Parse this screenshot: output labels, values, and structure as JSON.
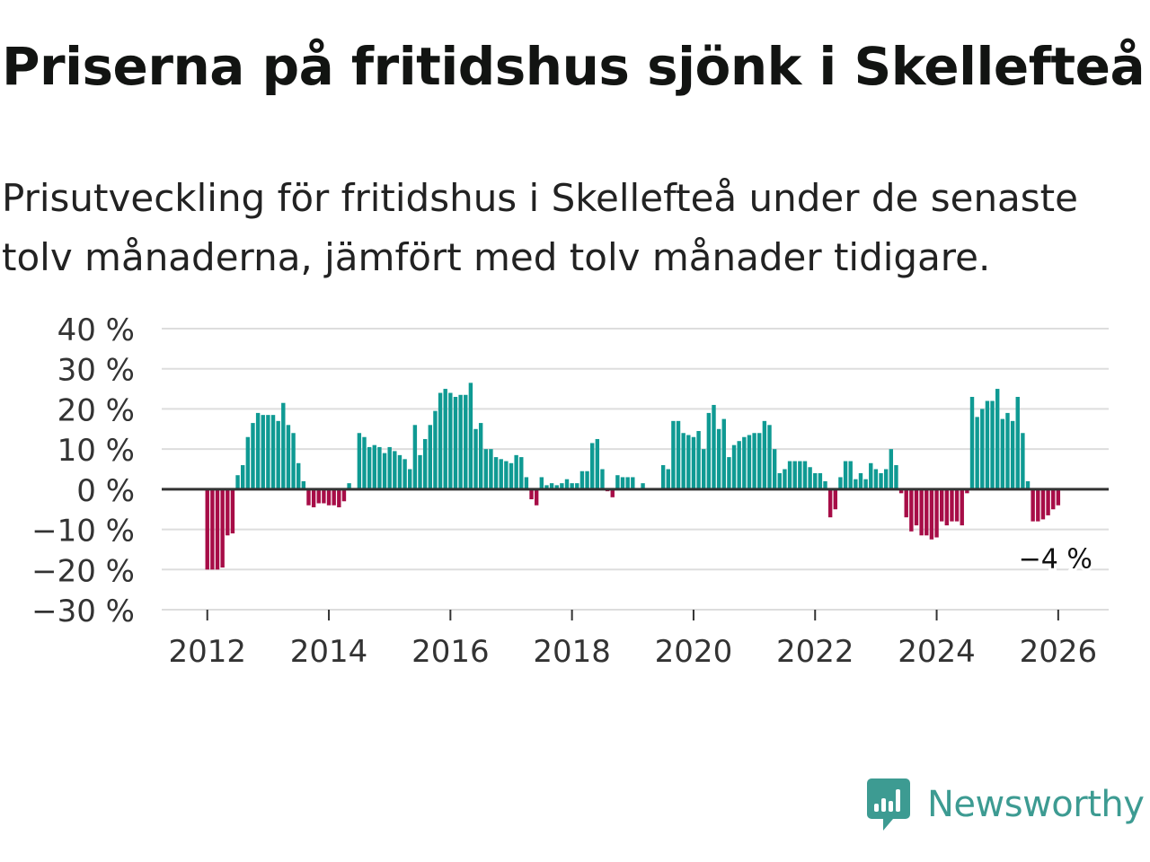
{
  "header": {
    "title": "Priserna på fritidshus sjönk i Skellefteå",
    "subtitle": "Prisutveckling för fritidshus i Skellefteå under de senaste tolv månaderna, jämfört med tolv månader tidigare."
  },
  "brand": {
    "name": "Newsworthy",
    "icon": "newsworthy-logo-icon"
  },
  "colors": {
    "positive": "#0f9a93",
    "negative": "#a70d47",
    "grid": "#dddddd",
    "zero_line": "#333333",
    "brand": "#3d9b92"
  },
  "chart_data": {
    "type": "bar",
    "title": "Priserna på fritidshus sjönk i Skellefteå",
    "xlabel": "",
    "ylabel": "",
    "unit": "%",
    "ylim": [
      -30,
      40
    ],
    "yticks": [
      40,
      30,
      20,
      10,
      0,
      -10,
      -20,
      -30
    ],
    "ytick_labels": [
      "40 %",
      "30 %",
      "20 %",
      "10 %",
      "0 %",
      "−10 %",
      "−20 %",
      "−30 %"
    ],
    "xlim": [
      2011.25,
      2026.83
    ],
    "xticks": [
      2012,
      2014,
      2016,
      2018,
      2020,
      2022,
      2024,
      2026
    ],
    "xtick_labels": [
      "2012",
      "2014",
      "2016",
      "2018",
      "2020",
      "2022",
      "2024",
      "2026"
    ],
    "start": "2012-01",
    "frequency": "monthly",
    "values": [
      -20,
      -20,
      -20,
      -19.5,
      -11.5,
      -11,
      3.5,
      6,
      13,
      16.5,
      19,
      18.5,
      18.5,
      18.5,
      17,
      21.5,
      16,
      14,
      6.5,
      2,
      -4,
      -4.5,
      -3.5,
      -3.5,
      -4,
      -4,
      -4.5,
      -3,
      1.5,
      0,
      14,
      13,
      10.5,
      11,
      10.5,
      9,
      10.5,
      9.5,
      8.5,
      7.5,
      5,
      16,
      8.5,
      12.5,
      16,
      19.5,
      24,
      25,
      24,
      23,
      23.5,
      23.5,
      26.5,
      15,
      16.5,
      10,
      10,
      8,
      7.5,
      7,
      6.5,
      8.5,
      8,
      3,
      -2.5,
      -4,
      3,
      1,
      1.5,
      1,
      1.5,
      2.5,
      1.5,
      1.5,
      4.5,
      4.5,
      11.5,
      12.5,
      5,
      -0.5,
      -2,
      3.5,
      3,
      3,
      3,
      0,
      1.5,
      0,
      0,
      0,
      6,
      5,
      17,
      17,
      14,
      13.5,
      13,
      14.5,
      10,
      19,
      21,
      15,
      17.5,
      8,
      11,
      12,
      13,
      13.5,
      14,
      14,
      17,
      16,
      10,
      4,
      5,
      7,
      7,
      7,
      7,
      5.5,
      4,
      4,
      2,
      -7,
      -5,
      3,
      7,
      7,
      2.5,
      4,
      2.5,
      6.5,
      5,
      4,
      5,
      10,
      6,
      -1,
      -7,
      -10.5,
      -9,
      -11.5,
      -11.5,
      -12.5,
      -12,
      -8,
      -9,
      -8,
      -8,
      -9,
      -1,
      23,
      18,
      20,
      22,
      22,
      25,
      17.5,
      19,
      17,
      23,
      14,
      2,
      -8,
      -8,
      -7.5,
      -6.5,
      -5,
      -4
    ],
    "annotation": {
      "label": "−4 %",
      "target": "last"
    }
  }
}
